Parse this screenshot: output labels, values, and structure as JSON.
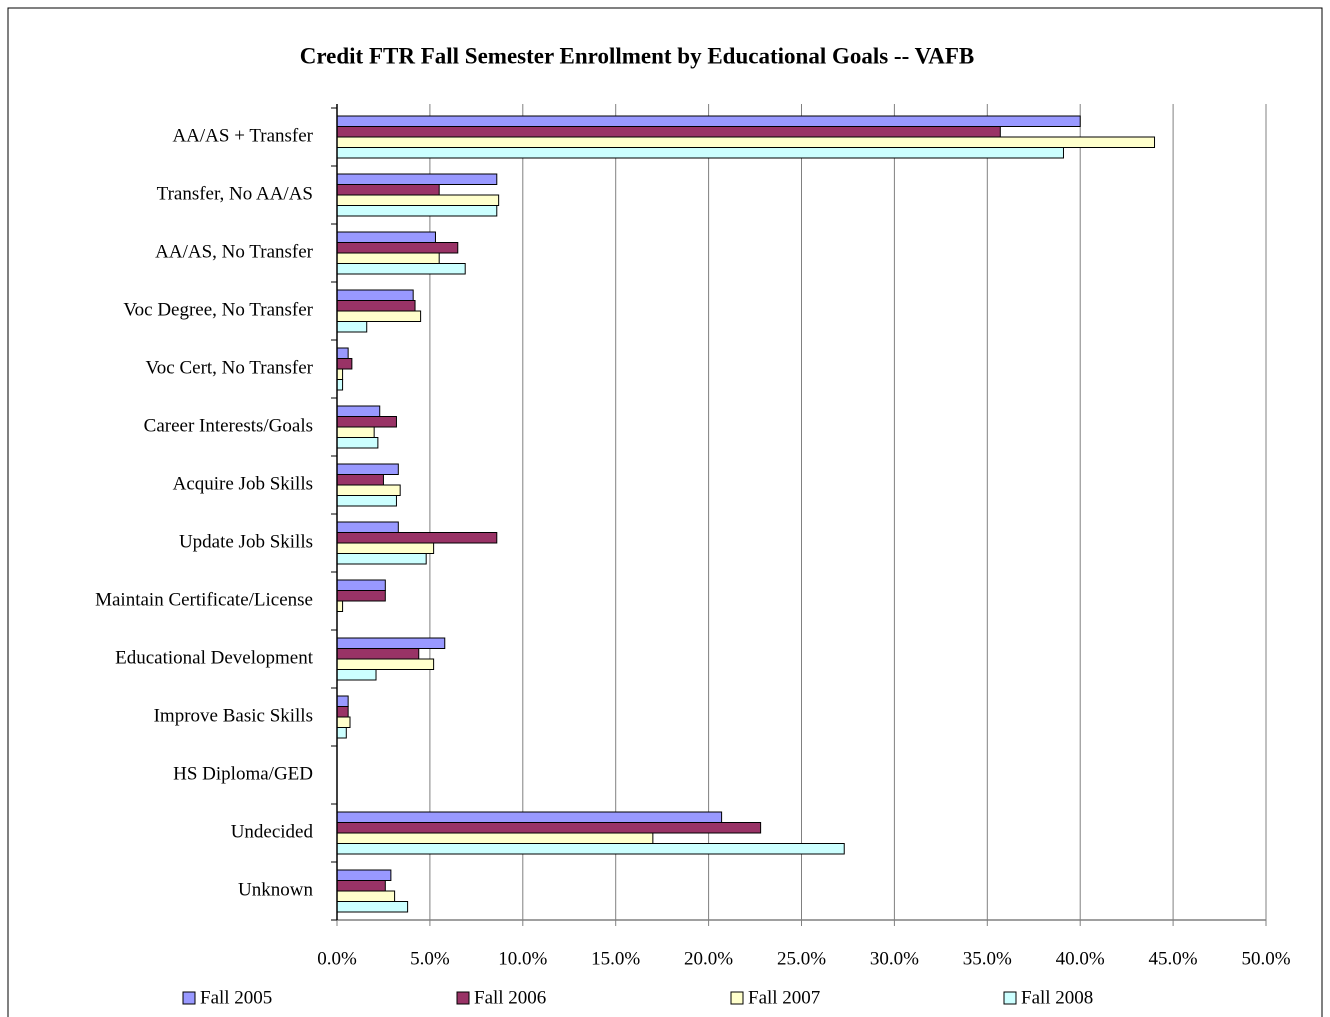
{
  "chart_data": {
    "type": "bar",
    "orientation": "horizontal",
    "title": "Credit FTR Fall Semester Enrollment by Educational Goals -- VAFB",
    "categories": [
      "AA/AS + Transfer",
      "Transfer, No AA/AS",
      "AA/AS, No Transfer",
      "Voc Degree, No Transfer",
      "Voc Cert, No Transfer",
      "Career Interests/Goals",
      "Acquire Job Skills",
      "Update Job Skills",
      "Maintain Certificate/License",
      "Educational Development",
      "Improve Basic Skills",
      "HS Diploma/GED",
      "Undecided",
      "Unknown"
    ],
    "series": [
      {
        "name": "Fall 2005",
        "color": "#9999ff",
        "values": [
          40.0,
          8.6,
          5.3,
          4.1,
          0.6,
          2.3,
          3.3,
          3.3,
          2.6,
          5.8,
          0.6,
          0,
          20.7,
          2.9
        ]
      },
      {
        "name": "Fall 2006",
        "color": "#993366",
        "values": [
          35.7,
          5.5,
          6.5,
          4.2,
          0.8,
          3.2,
          2.5,
          8.6,
          2.6,
          4.4,
          0.6,
          0,
          22.8,
          2.6
        ]
      },
      {
        "name": "Fall 2007",
        "color": "#ffffcc",
        "values": [
          44.0,
          8.7,
          5.5,
          4.5,
          0.3,
          2.0,
          3.4,
          5.2,
          0.3,
          5.2,
          0.7,
          0,
          17.0,
          3.1
        ]
      },
      {
        "name": "Fall 2008",
        "color": "#ccffff",
        "values": [
          39.1,
          8.6,
          6.9,
          1.6,
          0.3,
          2.2,
          3.2,
          4.8,
          0,
          2.1,
          0.5,
          0,
          27.3,
          3.8
        ]
      }
    ],
    "xlim": [
      0,
      50
    ],
    "xticks": [
      {
        "value": 0,
        "label": "0.0%"
      },
      {
        "value": 5,
        "label": "5.0%"
      },
      {
        "value": 10,
        "label": "10.0%"
      },
      {
        "value": 15,
        "label": "15.0%"
      },
      {
        "value": 20,
        "label": "20.0%"
      },
      {
        "value": 25,
        "label": "25.0%"
      },
      {
        "value": 30,
        "label": "30.0%"
      },
      {
        "value": 35,
        "label": "35.0%"
      },
      {
        "value": 40,
        "label": "40.0%"
      },
      {
        "value": 45,
        "label": "45.0%"
      },
      {
        "value": 50,
        "label": "50.0%"
      }
    ],
    "grid": true,
    "legend": "bottom"
  }
}
